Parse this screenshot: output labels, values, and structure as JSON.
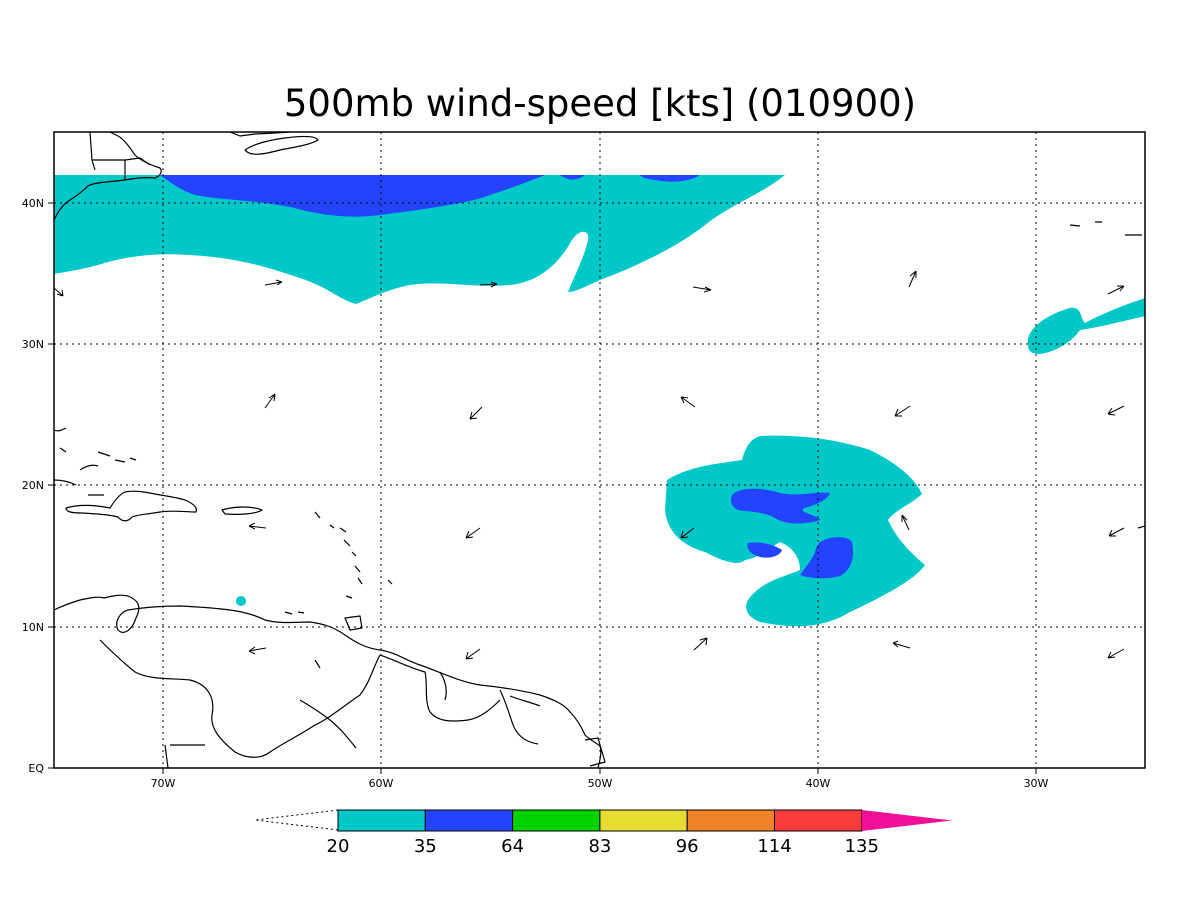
{
  "title": "500mb wind-speed [kts] (010900)",
  "map": {
    "lon_labels": [
      "70W",
      "60W",
      "50W",
      "40W",
      "30W"
    ],
    "lat_labels": [
      "40N",
      "30N",
      "20N",
      "10N",
      "EQ"
    ],
    "lon_range": [
      -75,
      -25
    ],
    "lat_range": [
      0,
      45
    ]
  },
  "colorbar": {
    "levels": [
      "20",
      "35",
      "64",
      "83",
      "96",
      "114",
      "135"
    ],
    "colors": [
      "#00c8c8",
      "#2443ff",
      "#00d200",
      "#e6dc32",
      "#f08228",
      "#fa3c3c",
      "#f00f96"
    ]
  },
  "colors": {
    "band_20_35": "#00c8c8",
    "band_35_64": "#2443ff",
    "coastline": "#000000"
  }
}
